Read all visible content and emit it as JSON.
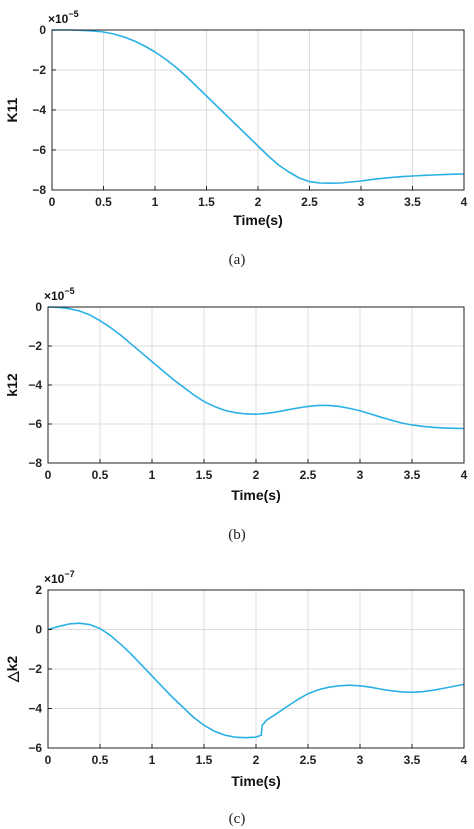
{
  "chart_data": [
    {
      "type": "line",
      "panel_label": "(a)",
      "ylabel": "K11",
      "xlabel": "Time(s)",
      "exponent_label": "×10",
      "exponent_power": "−5",
      "xlim": [
        0,
        4
      ],
      "ylim": [
        -8,
        0
      ],
      "xticks": [
        "0",
        "0.5",
        "1",
        "1.5",
        "2",
        "2.5",
        "3",
        "3.5",
        "4"
      ],
      "yticks": [
        "0",
        "−2",
        "−4",
        "−6",
        "−8"
      ],
      "grid": true,
      "line_color": "#2bb0e6",
      "series": [
        {
          "x": [
            0,
            0.1,
            0.2,
            0.3,
            0.4,
            0.5,
            0.6,
            0.7,
            0.8,
            0.9,
            1.0,
            1.1,
            1.2,
            1.3,
            1.4,
            1.5,
            1.6,
            1.7,
            1.8,
            1.9,
            2.0,
            2.1,
            2.2,
            2.3,
            2.4,
            2.5,
            2.6,
            2.7,
            2.8,
            2.9,
            3.0,
            3.1,
            3.2,
            3.3,
            3.4,
            3.5,
            3.6,
            3.7,
            3.8,
            3.9,
            4.0
          ],
          "y": [
            0,
            0,
            0,
            -0.02,
            -0.05,
            -0.1,
            -0.2,
            -0.35,
            -0.55,
            -0.8,
            -1.1,
            -1.45,
            -1.85,
            -2.3,
            -2.8,
            -3.3,
            -3.8,
            -4.3,
            -4.8,
            -5.3,
            -5.8,
            -6.3,
            -6.75,
            -7.1,
            -7.4,
            -7.58,
            -7.65,
            -7.66,
            -7.65,
            -7.6,
            -7.55,
            -7.48,
            -7.42,
            -7.37,
            -7.33,
            -7.3,
            -7.27,
            -7.25,
            -7.23,
            -7.21,
            -7.2
          ]
        }
      ]
    },
    {
      "type": "line",
      "panel_label": "(b)",
      "ylabel": "k12",
      "xlabel": "Time(s)",
      "exponent_label": "×10",
      "exponent_power": "−5",
      "xlim": [
        0,
        4
      ],
      "ylim": [
        -8,
        0
      ],
      "xticks": [
        "0",
        "0.5",
        "1",
        "1.5",
        "2",
        "2.5",
        "3",
        "3.5",
        "4"
      ],
      "yticks": [
        "0",
        "−2",
        "−4",
        "−6",
        "−8"
      ],
      "grid": true,
      "line_color": "#2bb0e6",
      "series": [
        {
          "x": [
            0,
            0.1,
            0.2,
            0.3,
            0.4,
            0.5,
            0.6,
            0.7,
            0.8,
            0.9,
            1.0,
            1.1,
            1.2,
            1.3,
            1.4,
            1.5,
            1.6,
            1.7,
            1.8,
            1.9,
            2.0,
            2.1,
            2.2,
            2.3,
            2.4,
            2.5,
            2.6,
            2.7,
            2.8,
            2.9,
            3.0,
            3.1,
            3.2,
            3.3,
            3.4,
            3.5,
            3.6,
            3.7,
            3.8,
            3.9,
            4.0
          ],
          "y": [
            0,
            -0.02,
            -0.08,
            -0.2,
            -0.4,
            -0.7,
            -1.05,
            -1.45,
            -1.9,
            -2.35,
            -2.8,
            -3.25,
            -3.7,
            -4.1,
            -4.5,
            -4.85,
            -5.1,
            -5.3,
            -5.42,
            -5.48,
            -5.5,
            -5.46,
            -5.38,
            -5.28,
            -5.18,
            -5.1,
            -5.05,
            -5.05,
            -5.1,
            -5.2,
            -5.32,
            -5.48,
            -5.65,
            -5.8,
            -5.95,
            -6.05,
            -6.12,
            -6.17,
            -6.2,
            -6.22,
            -6.23
          ]
        }
      ]
    },
    {
      "type": "line",
      "panel_label": "(c)",
      "ylabel": "△k2",
      "xlabel": "Time(s)",
      "exponent_label": "×10",
      "exponent_power": "−7",
      "xlim": [
        0,
        4
      ],
      "ylim": [
        -6,
        2
      ],
      "xticks": [
        "0",
        "0.5",
        "1",
        "1.5",
        "2",
        "2.5",
        "3",
        "3.5",
        "4"
      ],
      "yticks": [
        "2",
        "0",
        "−2",
        "−4",
        "−6"
      ],
      "grid": true,
      "line_color": "#2bb0e6",
      "series": [
        {
          "x": [
            0,
            0.1,
            0.2,
            0.3,
            0.4,
            0.5,
            0.6,
            0.7,
            0.8,
            0.9,
            1.0,
            1.1,
            1.2,
            1.3,
            1.4,
            1.5,
            1.6,
            1.7,
            1.8,
            1.9,
            2.0,
            2.05,
            2.06,
            2.1,
            2.2,
            2.3,
            2.4,
            2.5,
            2.6,
            2.7,
            2.8,
            2.9,
            3.0,
            3.1,
            3.2,
            3.3,
            3.4,
            3.5,
            3.6,
            3.7,
            3.8,
            3.9,
            4.0
          ],
          "y": [
            0,
            0.15,
            0.28,
            0.32,
            0.25,
            0.05,
            -0.3,
            -0.75,
            -1.25,
            -1.8,
            -2.35,
            -2.9,
            -3.45,
            -3.95,
            -4.45,
            -4.85,
            -5.15,
            -5.35,
            -5.45,
            -5.48,
            -5.45,
            -5.35,
            -4.85,
            -4.6,
            -4.25,
            -3.9,
            -3.55,
            -3.25,
            -3.05,
            -2.92,
            -2.85,
            -2.82,
            -2.85,
            -2.92,
            -3.02,
            -3.1,
            -3.16,
            -3.18,
            -3.15,
            -3.08,
            -2.98,
            -2.88,
            -2.78
          ]
        }
      ]
    }
  ]
}
